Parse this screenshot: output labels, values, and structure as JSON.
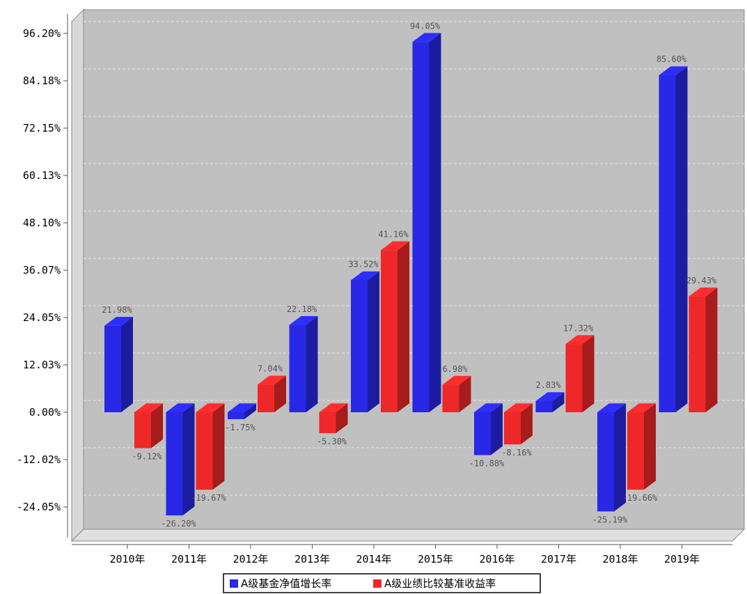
{
  "chart_data": {
    "type": "bar",
    "categories": [
      "2010年",
      "2011年",
      "2012年",
      "2013年",
      "2014年",
      "2015年",
      "2016年",
      "2017年",
      "2018年",
      "2019年"
    ],
    "series": [
      {
        "name": "A级基金净值增长率",
        "color": "#2828e6",
        "values": [
          21.98,
          -26.2,
          -1.75,
          22.18,
          33.52,
          94.05,
          -10.88,
          2.83,
          -25.19,
          85.6
        ],
        "labels": [
          "21.98%",
          "-26.20%",
          "-1.75%",
          "22.18%",
          "33.52%",
          "94.05%",
          "-10.88%",
          "2.83%",
          "-25.19%",
          "85.60%"
        ]
      },
      {
        "name": "A级业绩比较基准收益率",
        "color": "#ee2828",
        "values": [
          -9.12,
          -19.67,
          7.04,
          -5.3,
          41.16,
          6.98,
          -8.16,
          17.32,
          -19.66,
          29.43
        ],
        "labels": [
          "-9.12%",
          "-19.67%",
          "7.04%",
          "-5.30%",
          "41.16%",
          "6.98%",
          "-8.16%",
          "17.32%",
          "-19.66%",
          "29.43%"
        ]
      }
    ],
    "y_ticks": [
      -24.05,
      -12.02,
      0.0,
      12.03,
      24.05,
      36.07,
      48.1,
      60.13,
      72.15,
      84.18,
      96.2
    ],
    "y_tick_labels": [
      "-24.05%",
      "-12.02%",
      "0.00%",
      "12.03%",
      "24.05%",
      "36.07%",
      "48.10%",
      "60.13%",
      "72.15%",
      "84.18%",
      "96.20%"
    ],
    "ylim": [
      -30.0,
      98.0
    ],
    "grid": true,
    "legend_position": "bottom-center",
    "plot_background": "#c0c0c0"
  }
}
